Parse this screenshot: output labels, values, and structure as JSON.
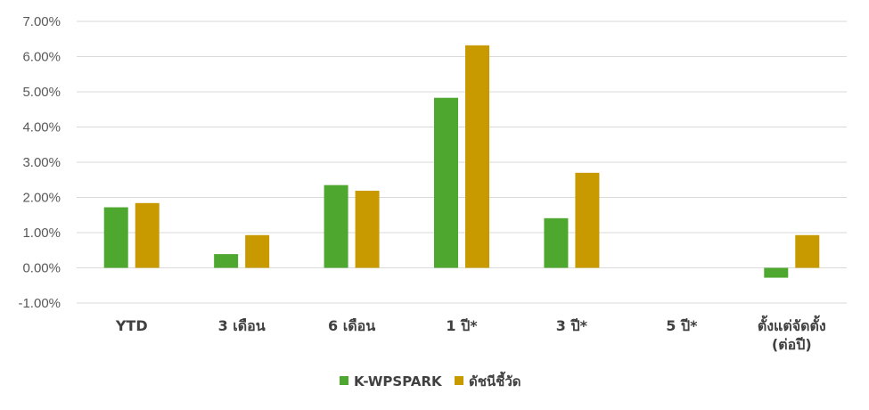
{
  "chart_data": {
    "type": "bar",
    "categories": [
      "YTD",
      "3 เดือน",
      "6 เดือน",
      "1 ปี*",
      "3 ปี*",
      "5 ปี*",
      "ตั้งแต่จัดตั้ง (ต่อปี)"
    ],
    "series": [
      {
        "name": "K-WPSPARK",
        "color": "#4ea72e",
        "values": [
          1.72,
          0.39,
          2.35,
          4.83,
          1.41,
          null,
          -0.28
        ]
      },
      {
        "name": "ดัชนีชี้วัด",
        "color": "#c89a00",
        "values": [
          1.84,
          0.93,
          2.19,
          6.32,
          2.7,
          null,
          0.93
        ]
      }
    ],
    "ylim": [
      -1,
      7
    ],
    "yticks": [
      "-1.00%",
      "0.00%",
      "1.00%",
      "2.00%",
      "3.00%",
      "4.00%",
      "5.00%",
      "6.00%",
      "7.00%"
    ],
    "ytick_values": [
      -1,
      0,
      1,
      2,
      3,
      4,
      5,
      6,
      7
    ],
    "grid": true,
    "legend": "bottom-center",
    "title": "",
    "xlabel": "",
    "ylabel": ""
  }
}
